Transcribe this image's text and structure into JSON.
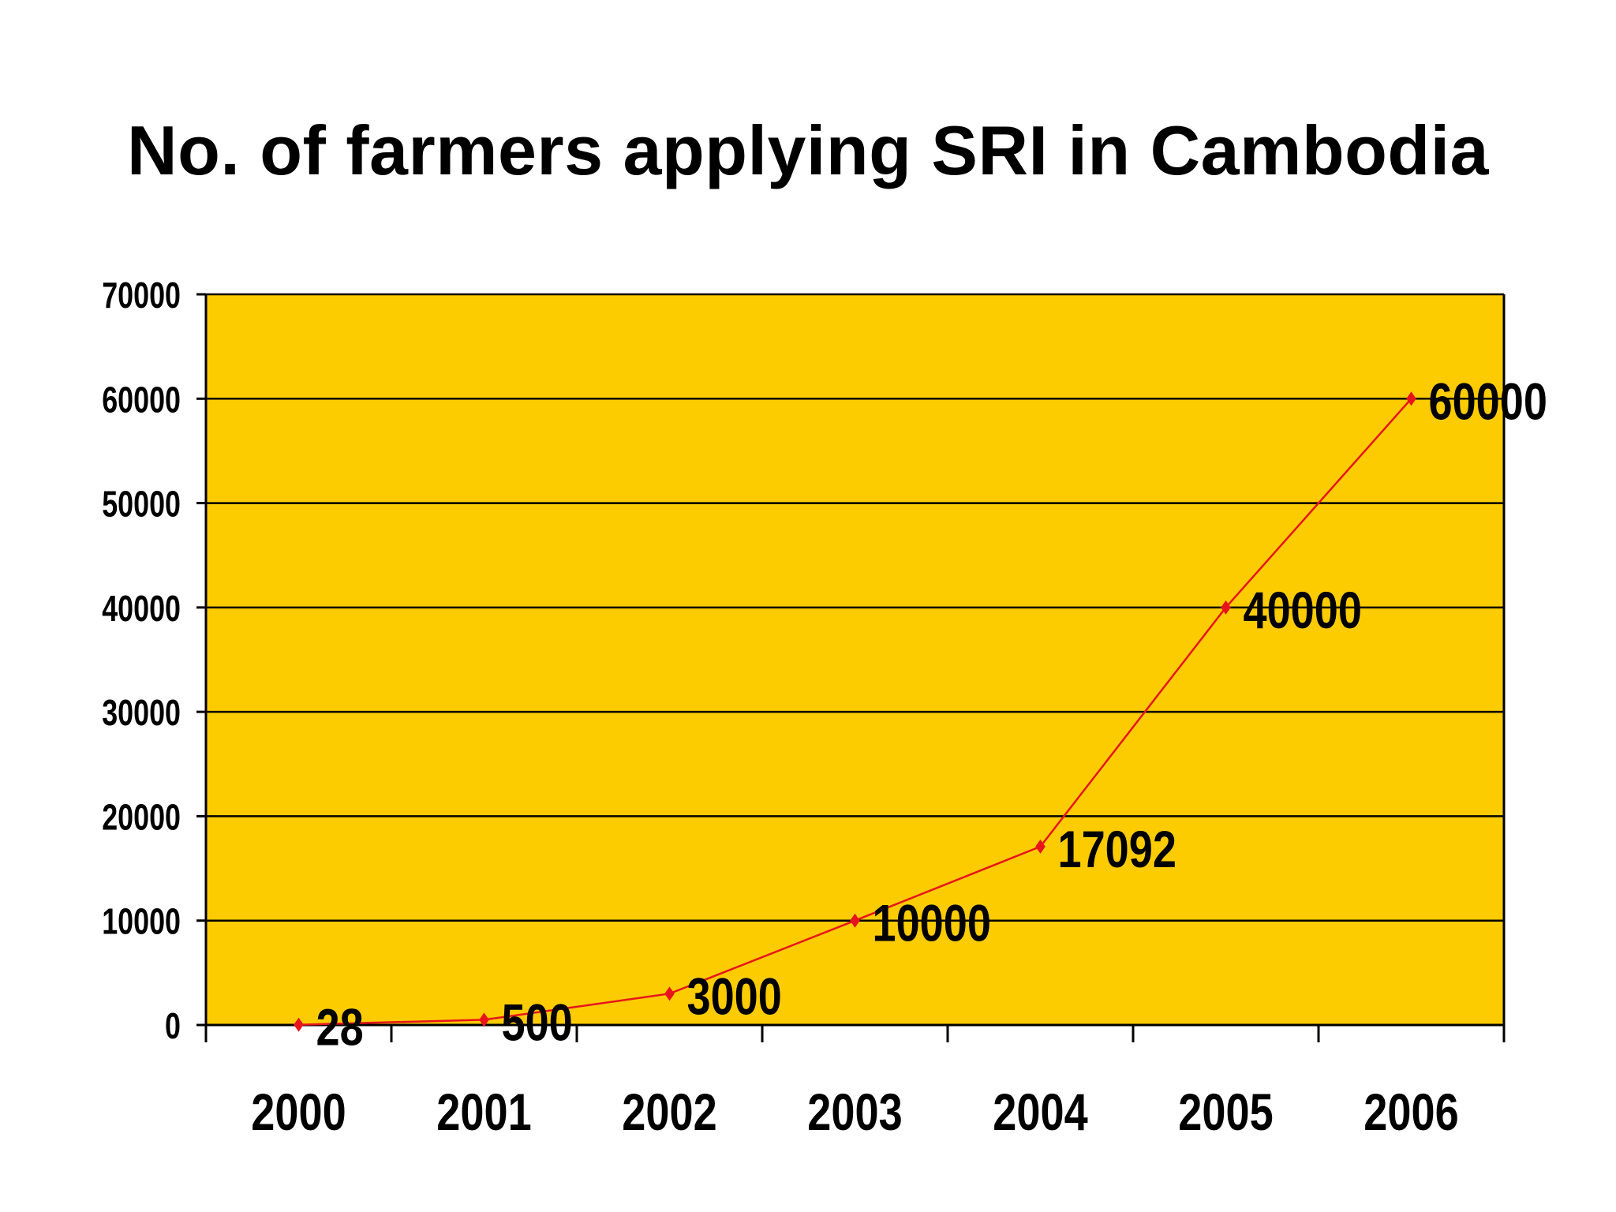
{
  "chart_data": {
    "type": "line",
    "title": "No. of farmers applying SRI in Cambodia",
    "xlabel": "",
    "ylabel": "",
    "categories": [
      "2000",
      "2001",
      "2002",
      "2003",
      "2004",
      "2005",
      "2006"
    ],
    "series": [
      {
        "values": [
          28,
          500,
          3000,
          10000,
          17092,
          40000,
          60000
        ],
        "data_labels": [
          "28",
          "500",
          "3000",
          "10000",
          "17092",
          "40000",
          "60000"
        ],
        "color": "#e8141c",
        "marker": "diamond"
      }
    ],
    "ylim": [
      0,
      70000
    ],
    "yticks": [
      0,
      10000,
      20000,
      30000,
      40000,
      50000,
      60000,
      70000
    ],
    "ytick_labels": [
      "0",
      "10000",
      "20000",
      "30000",
      "40000",
      "50000",
      "60000",
      "70000"
    ],
    "grid": true,
    "legend": "none",
    "plot_background": "#fccc00"
  }
}
